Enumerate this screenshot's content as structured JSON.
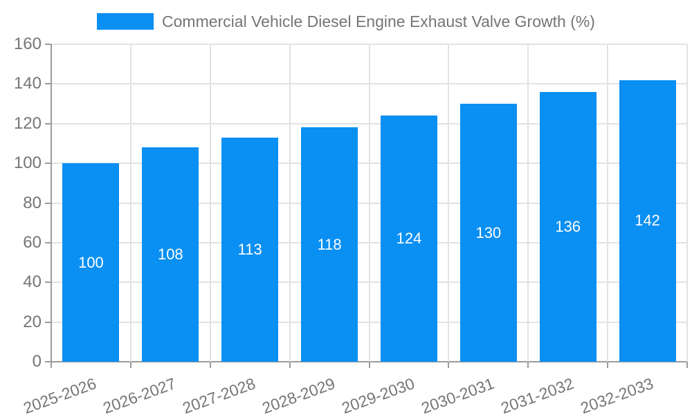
{
  "legend": {
    "label": "Commercial Vehicle Diesel Engine Exhaust Valve Growth (%)"
  },
  "chart_data": {
    "type": "bar",
    "title": "Commercial Vehicle Diesel Engine Exhaust Valve Growth (%)",
    "categories": [
      "2025-2026",
      "2026-2027",
      "2027-2028",
      "2028-2029",
      "2029-2030",
      "2030-2031",
      "2031-2032",
      "2032-2033"
    ],
    "values": [
      100,
      108,
      113,
      118,
      124,
      130,
      136,
      142
    ],
    "xlabel": "",
    "ylabel": "",
    "ylim": [
      0,
      160
    ],
    "yticks": [
      0,
      20,
      40,
      60,
      80,
      100,
      120,
      140,
      160
    ],
    "grid": true,
    "legend_position": "top",
    "x_label_rotation_deg": -20
  },
  "colors": {
    "bar": "#0A8FF2",
    "bar_label": "#FFFFFF",
    "grid": "#E2E2E2",
    "axis": "#9B9B9B",
    "text": "#757575",
    "background": "#FFFFFF"
  }
}
